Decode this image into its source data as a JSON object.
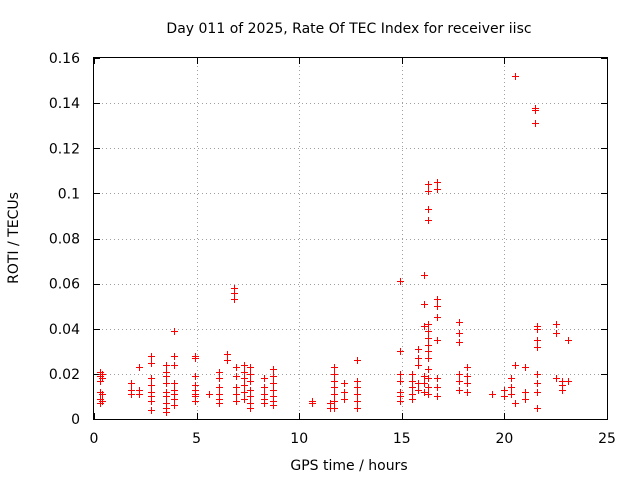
{
  "chart_data": {
    "type": "scatter",
    "title": "Day 011 of 2025, Rate Of TEC Index for receiver iisc",
    "xlabel": "GPS time / hours",
    "ylabel": "ROTI / TECUs",
    "xlim": [
      0,
      25
    ],
    "ylim": [
      0,
      0.16
    ],
    "xticks": [
      0,
      5,
      10,
      15,
      20,
      25
    ],
    "xtick_labels": [
      "0",
      "5",
      "10",
      "15",
      "20",
      "25"
    ],
    "yticks": [
      0,
      0.02,
      0.04,
      0.06,
      0.08,
      0.1,
      0.12,
      0.14,
      0.16
    ],
    "ytick_labels": [
      "0",
      "0.02",
      "0.04",
      "0.06",
      "0.08",
      "0.1",
      "0.12",
      "0.14",
      "0.16"
    ],
    "grid": true,
    "marker": "+",
    "marker_color": "#ff0000",
    "series": [
      {
        "points": [
          [
            0.3,
            0.021
          ],
          [
            0.3,
            0.019
          ],
          [
            0.3,
            0.017
          ],
          [
            0.3,
            0.012
          ],
          [
            0.3,
            0.009
          ],
          [
            0.3,
            0.007
          ],
          [
            0.4,
            0.02
          ],
          [
            0.4,
            0.018
          ],
          [
            0.4,
            0.011
          ],
          [
            0.4,
            0.008
          ],
          [
            1.8,
            0.016
          ],
          [
            1.8,
            0.013
          ],
          [
            1.8,
            0.011
          ],
          [
            2.2,
            0.023
          ],
          [
            2.2,
            0.013
          ],
          [
            2.2,
            0.011
          ],
          [
            2.8,
            0.028
          ],
          [
            2.8,
            0.025
          ],
          [
            2.8,
            0.018
          ],
          [
            2.8,
            0.015
          ],
          [
            2.8,
            0.012
          ],
          [
            2.8,
            0.01
          ],
          [
            2.8,
            0.008
          ],
          [
            2.8,
            0.004
          ],
          [
            3.5,
            0.024
          ],
          [
            3.5,
            0.021
          ],
          [
            3.5,
            0.019
          ],
          [
            3.5,
            0.016
          ],
          [
            3.5,
            0.012
          ],
          [
            3.5,
            0.01
          ],
          [
            3.5,
            0.007
          ],
          [
            3.5,
            0.005
          ],
          [
            3.5,
            0.003
          ],
          [
            3.9,
            0.039
          ],
          [
            3.9,
            0.028
          ],
          [
            3.9,
            0.024
          ],
          [
            3.9,
            0.016
          ],
          [
            3.9,
            0.013
          ],
          [
            3.9,
            0.011
          ],
          [
            3.9,
            0.009
          ],
          [
            3.9,
            0.006
          ],
          [
            4.9,
            0.028
          ],
          [
            4.9,
            0.027
          ],
          [
            4.9,
            0.019
          ],
          [
            4.9,
            0.015
          ],
          [
            4.9,
            0.013
          ],
          [
            4.9,
            0.011
          ],
          [
            4.9,
            0.01
          ],
          [
            4.9,
            0.008
          ],
          [
            5.6,
            0.011
          ],
          [
            6.1,
            0.021
          ],
          [
            6.1,
            0.018
          ],
          [
            6.1,
            0.014
          ],
          [
            6.1,
            0.011
          ],
          [
            6.1,
            0.009
          ],
          [
            6.1,
            0.007
          ],
          [
            6.5,
            0.029
          ],
          [
            6.5,
            0.026
          ],
          [
            6.8,
            0.058
          ],
          [
            6.8,
            0.056
          ],
          [
            6.8,
            0.053
          ],
          [
            6.9,
            0.023
          ],
          [
            6.9,
            0.019
          ],
          [
            6.9,
            0.014
          ],
          [
            6.9,
            0.011
          ],
          [
            6.9,
            0.008
          ],
          [
            7.3,
            0.024
          ],
          [
            7.3,
            0.021
          ],
          [
            7.3,
            0.018
          ],
          [
            7.3,
            0.015
          ],
          [
            7.3,
            0.012
          ],
          [
            7.3,
            0.009
          ],
          [
            7.6,
            0.023
          ],
          [
            7.6,
            0.02
          ],
          [
            7.6,
            0.017
          ],
          [
            7.6,
            0.013
          ],
          [
            7.6,
            0.01
          ],
          [
            7.6,
            0.007
          ],
          [
            7.6,
            0.005
          ],
          [
            8.3,
            0.018
          ],
          [
            8.3,
            0.014
          ],
          [
            8.3,
            0.011
          ],
          [
            8.3,
            0.009
          ],
          [
            8.3,
            0.007
          ],
          [
            8.7,
            0.022
          ],
          [
            8.7,
            0.019
          ],
          [
            8.7,
            0.016
          ],
          [
            8.7,
            0.013
          ],
          [
            8.7,
            0.01
          ],
          [
            8.7,
            0.008
          ],
          [
            8.7,
            0.006
          ],
          [
            10.6,
            0.008
          ],
          [
            10.6,
            0.007
          ],
          [
            11.5,
            0.007
          ],
          [
            11.5,
            0.005
          ],
          [
            11.7,
            0.023
          ],
          [
            11.7,
            0.02
          ],
          [
            11.7,
            0.017
          ],
          [
            11.7,
            0.014
          ],
          [
            11.7,
            0.011
          ],
          [
            11.7,
            0.008
          ],
          [
            11.7,
            0.005
          ],
          [
            12.2,
            0.016
          ],
          [
            12.2,
            0.012
          ],
          [
            12.2,
            0.009
          ],
          [
            12.8,
            0.026
          ],
          [
            12.8,
            0.017
          ],
          [
            12.8,
            0.014
          ],
          [
            12.8,
            0.011
          ],
          [
            12.8,
            0.008
          ],
          [
            12.8,
            0.005
          ],
          [
            14.9,
            0.061
          ],
          [
            14.9,
            0.03
          ],
          [
            14.9,
            0.02
          ],
          [
            14.9,
            0.017
          ],
          [
            14.9,
            0.012
          ],
          [
            14.9,
            0.01
          ],
          [
            14.9,
            0.008
          ],
          [
            15.5,
            0.02
          ],
          [
            15.5,
            0.017
          ],
          [
            15.5,
            0.014
          ],
          [
            15.5,
            0.011
          ],
          [
            15.5,
            0.009
          ],
          [
            15.8,
            0.031
          ],
          [
            15.8,
            0.027
          ],
          [
            15.8,
            0.024
          ],
          [
            15.8,
            0.016
          ],
          [
            15.8,
            0.013
          ],
          [
            16.1,
            0.064
          ],
          [
            16.1,
            0.051
          ],
          [
            16.1,
            0.041
          ],
          [
            16.1,
            0.019
          ],
          [
            16.1,
            0.016
          ],
          [
            16.1,
            0.012
          ],
          [
            16.3,
            0.104
          ],
          [
            16.3,
            0.101
          ],
          [
            16.3,
            0.093
          ],
          [
            16.3,
            0.088
          ],
          [
            16.3,
            0.042
          ],
          [
            16.3,
            0.039
          ],
          [
            16.3,
            0.036
          ],
          [
            16.3,
            0.033
          ],
          [
            16.3,
            0.03
          ],
          [
            16.3,
            0.027
          ],
          [
            16.3,
            0.022
          ],
          [
            16.3,
            0.018
          ],
          [
            16.3,
            0.014
          ],
          [
            16.3,
            0.011
          ],
          [
            16.7,
            0.105
          ],
          [
            16.7,
            0.102
          ],
          [
            16.7,
            0.053
          ],
          [
            16.7,
            0.05
          ],
          [
            16.7,
            0.045
          ],
          [
            16.7,
            0.035
          ],
          [
            16.7,
            0.018
          ],
          [
            16.7,
            0.014
          ],
          [
            16.7,
            0.01
          ],
          [
            17.8,
            0.043
          ],
          [
            17.8,
            0.038
          ],
          [
            17.8,
            0.034
          ],
          [
            17.8,
            0.02
          ],
          [
            17.8,
            0.017
          ],
          [
            17.8,
            0.013
          ],
          [
            18.2,
            0.023
          ],
          [
            18.2,
            0.019
          ],
          [
            18.2,
            0.016
          ],
          [
            18.2,
            0.012
          ],
          [
            19.4,
            0.011
          ],
          [
            20.0,
            0.013
          ],
          [
            20.0,
            0.01
          ],
          [
            20.3,
            0.018
          ],
          [
            20.3,
            0.014
          ],
          [
            20.3,
            0.011
          ],
          [
            20.5,
            0.152
          ],
          [
            20.5,
            0.024
          ],
          [
            20.5,
            0.007
          ],
          [
            21.0,
            0.023
          ],
          [
            21.0,
            0.012
          ],
          [
            21.0,
            0.009
          ],
          [
            21.5,
            0.138
          ],
          [
            21.5,
            0.137
          ],
          [
            21.5,
            0.131
          ],
          [
            21.6,
            0.041
          ],
          [
            21.6,
            0.04
          ],
          [
            21.6,
            0.035
          ],
          [
            21.6,
            0.032
          ],
          [
            21.6,
            0.02
          ],
          [
            21.6,
            0.016
          ],
          [
            21.6,
            0.012
          ],
          [
            21.6,
            0.005
          ],
          [
            22.5,
            0.042
          ],
          [
            22.5,
            0.038
          ],
          [
            22.5,
            0.018
          ],
          [
            22.8,
            0.017
          ],
          [
            22.8,
            0.015
          ],
          [
            22.8,
            0.013
          ],
          [
            23.1,
            0.035
          ],
          [
            23.1,
            0.017
          ]
        ]
      }
    ]
  }
}
